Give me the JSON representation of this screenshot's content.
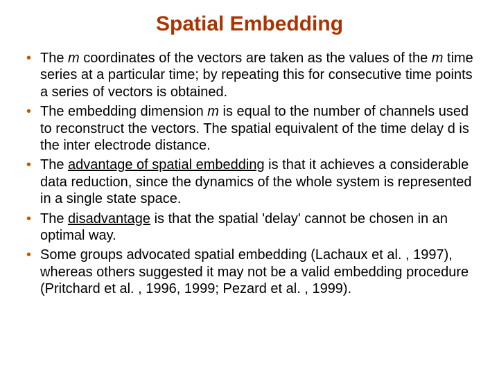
{
  "title_color": "#aa3300",
  "bullet_color": "#b85c00",
  "text_color": "#000000",
  "background_color": "#ffffff",
  "title": "Spatial Embedding",
  "title_fontsize": 30,
  "body_fontsize": 20,
  "bullets": [
    {
      "pre": "The ",
      "it1": "m",
      "mid1": " coordinates of the vectors are taken as the values of the ",
      "it2": "m",
      "post": " time series at a particular time; by repeating this for consecutive time points a series of vectors is obtained."
    },
    {
      "pre": "The embedding dimension ",
      "it1": "m",
      "post": " is equal to the number of channels used to reconstruct the vectors. The spatial equivalent of the time delay d is the inter electrode distance."
    },
    {
      "pre": "The ",
      "u": "advantage of spatial embedding",
      "post": " is that it achieves a considerable data reduction, since the dynamics of the whole system is represented in a single state space."
    },
    {
      "pre": "The ",
      "u": "disadvantage",
      "post": " is that the spatial 'delay' cannot be chosen in an optimal way."
    },
    {
      "text": "Some groups advocated spatial embedding (Lachaux et al. , 1997), whereas others suggested it may not be a valid embedding procedure (Pritchard et al. , 1996, 1999; Pezard et al. , 1999)."
    }
  ]
}
